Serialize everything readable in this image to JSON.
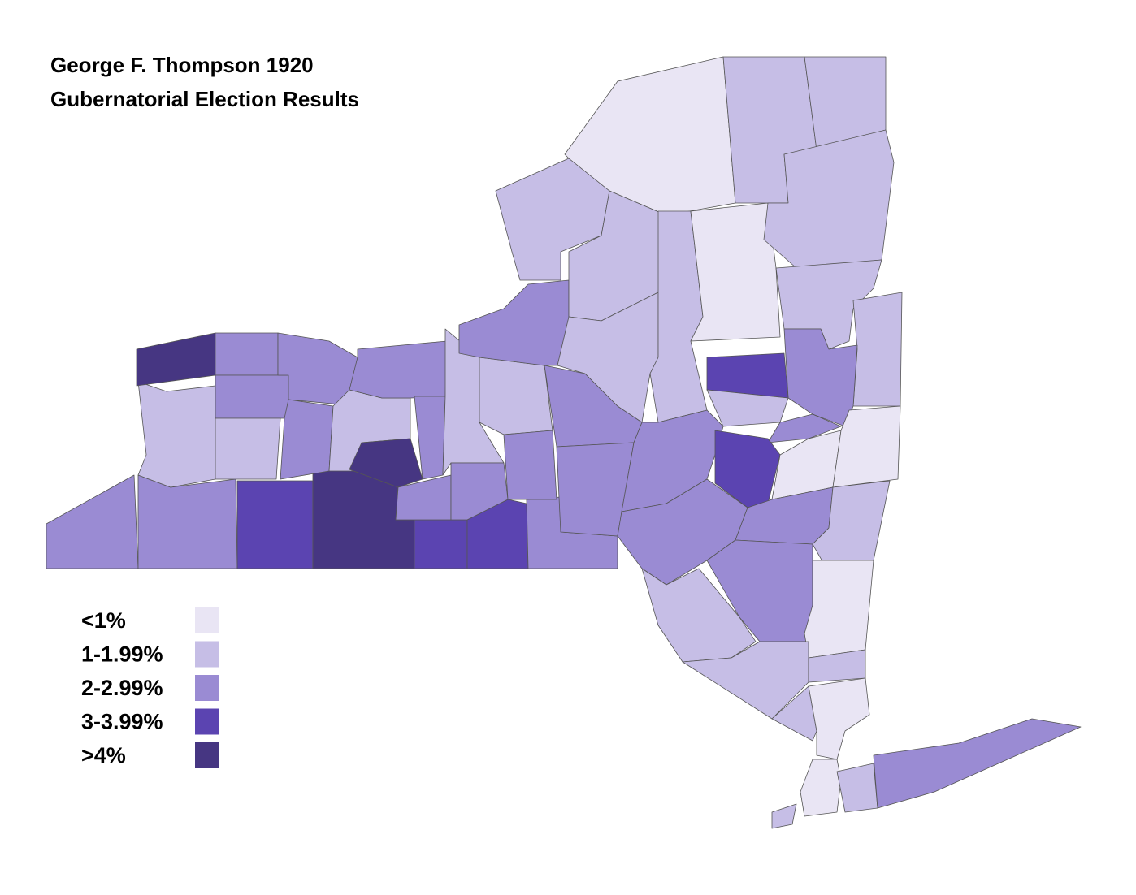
{
  "title_lines": [
    "George F. Thompson 1920",
    "Gubernatorial Election Results"
  ],
  "legend": [
    {
      "label": "<1%",
      "color": "#e9e5f4"
    },
    {
      "label": "1-1.99%",
      "color": "#c6bee6"
    },
    {
      "label": "2-2.99%",
      "color": "#9a8bd3"
    },
    {
      "label": "3-3.99%",
      "color": "#5b44b1"
    },
    {
      "label": ">4%",
      "color": "#463682"
    }
  ]
}
